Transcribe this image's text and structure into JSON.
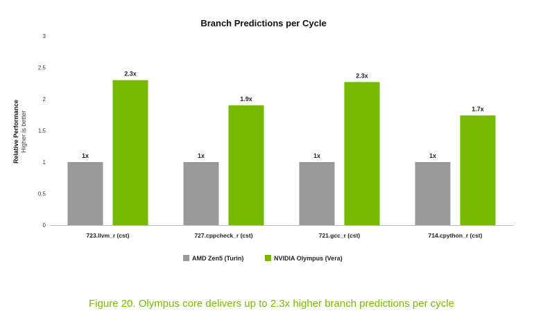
{
  "chart_data": {
    "type": "bar",
    "title": "Branch Predictions per Cycle",
    "ylabel": "Relative Performance",
    "ylabel_sub": "Higher is better",
    "xlabel": "",
    "ylim": [
      0,
      3
    ],
    "yticks": [
      0,
      0.5,
      1,
      1.5,
      2,
      2.5,
      3
    ],
    "ytick_labels": [
      "0",
      "0.5",
      "1",
      "1.5",
      "2",
      "2.5",
      "3"
    ],
    "grid": false,
    "legend_position": "bottom-center",
    "categories": [
      "723.llvm_r (cst)",
      "727.cppcheck_r (cst)",
      "721.gcc_r (cst)",
      "714.cpython_r (cst)"
    ],
    "series": [
      {
        "name": "AMD Zen5 (Turin)",
        "color": "#999999",
        "values": [
          1,
          1,
          1,
          1
        ],
        "labels": [
          "1x",
          "1x",
          "1x",
          "1x"
        ]
      },
      {
        "name": "NVIDIA Olympus (Vera)",
        "color": "#76b900",
        "values": [
          2.3,
          1.9,
          2.27,
          1.74
        ],
        "labels": [
          "2.3x",
          "1.9x",
          "2.3x",
          "1.7x"
        ]
      }
    ]
  },
  "caption": "Figure 20. Olympus core delivers up to 2.3x higher branch predictions per cycle"
}
